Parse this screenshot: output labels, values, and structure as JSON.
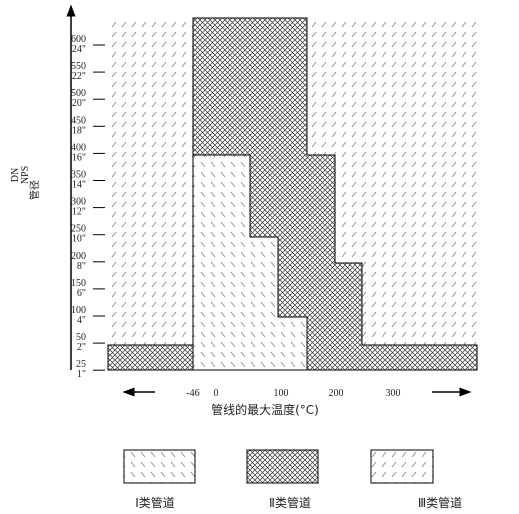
{
  "axis": {
    "y_title": "管径",
    "y_units": [
      "DN",
      "NPS"
    ],
    "x_title": "管线的最大温度(°C)"
  },
  "y_ticks": [
    {
      "dn": "600",
      "nps": "24\""
    },
    {
      "dn": "550",
      "nps": "22\""
    },
    {
      "dn": "500",
      "nps": "20\""
    },
    {
      "dn": "450",
      "nps": "18\""
    },
    {
      "dn": "400",
      "nps": "16\""
    },
    {
      "dn": "350",
      "nps": "14\""
    },
    {
      "dn": "300",
      "nps": "12\""
    },
    {
      "dn": "250",
      "nps": "10\""
    },
    {
      "dn": "200",
      "nps": "8\""
    },
    {
      "dn": "150",
      "nps": "6\""
    },
    {
      "dn": "100",
      "nps": "4\""
    },
    {
      "dn": "50",
      "nps": "2\""
    },
    {
      "dn": "25",
      "nps": "1\""
    }
  ],
  "x_ticks": [
    "-46",
    "0",
    "100",
    "200",
    "300"
  ],
  "legend": [
    "Ⅰ类管道",
    "Ⅱ类管道",
    "Ⅲ类管道"
  ]
}
